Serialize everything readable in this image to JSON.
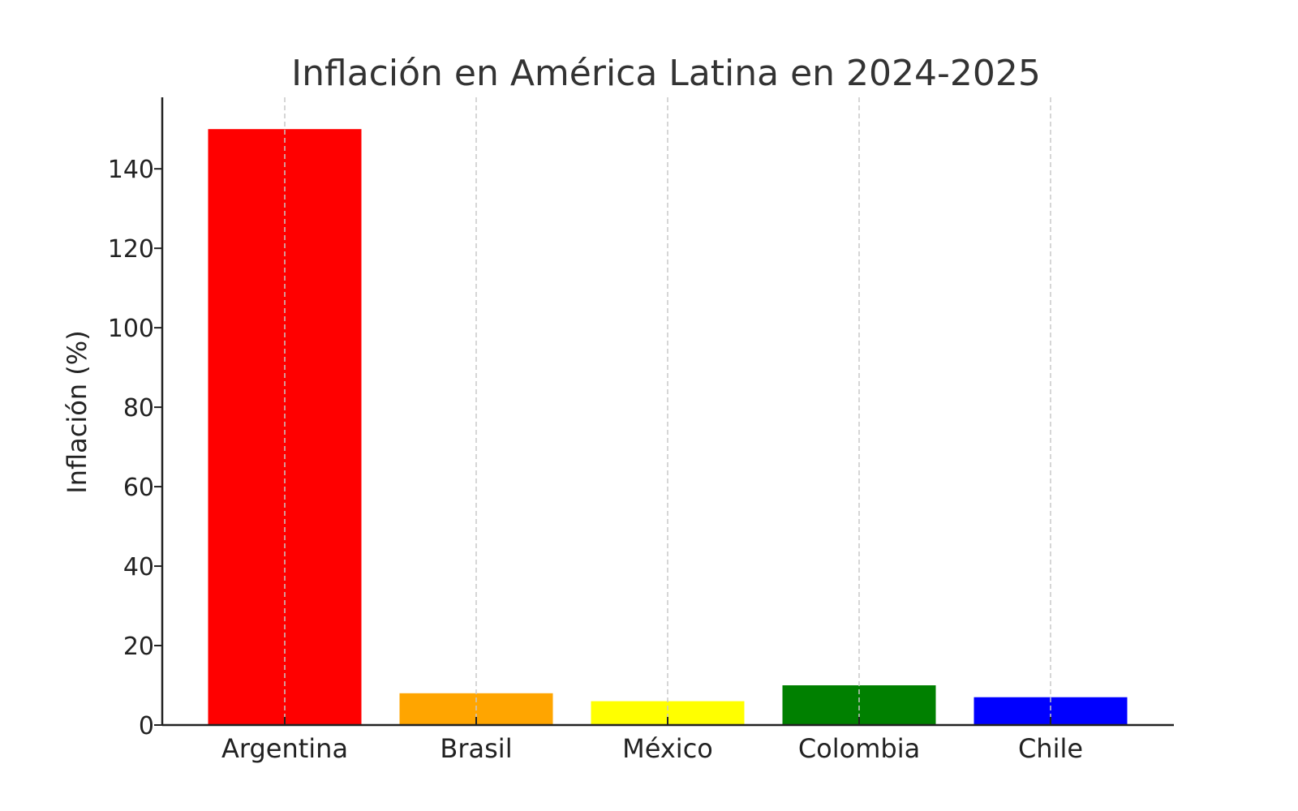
{
  "chart_data": {
    "type": "bar",
    "title": "Inflación en América Latina en 2024-2025",
    "xlabel": "",
    "ylabel": "Inflación (%)",
    "categories": [
      "Argentina",
      "Brasil",
      "México",
      "Colombia",
      "Chile"
    ],
    "values": [
      150,
      8,
      6,
      10,
      7
    ],
    "colors": [
      "#ff0000",
      "#ffa500",
      "#ffff00",
      "#008000",
      "#0000ff"
    ],
    "ylim": [
      0,
      158
    ],
    "yticks": [
      0,
      20,
      40,
      60,
      80,
      100,
      120,
      140
    ],
    "grid": {
      "x": true,
      "y": false,
      "style": "dashed",
      "color": "#c8c8c8"
    },
    "legend": "none"
  }
}
